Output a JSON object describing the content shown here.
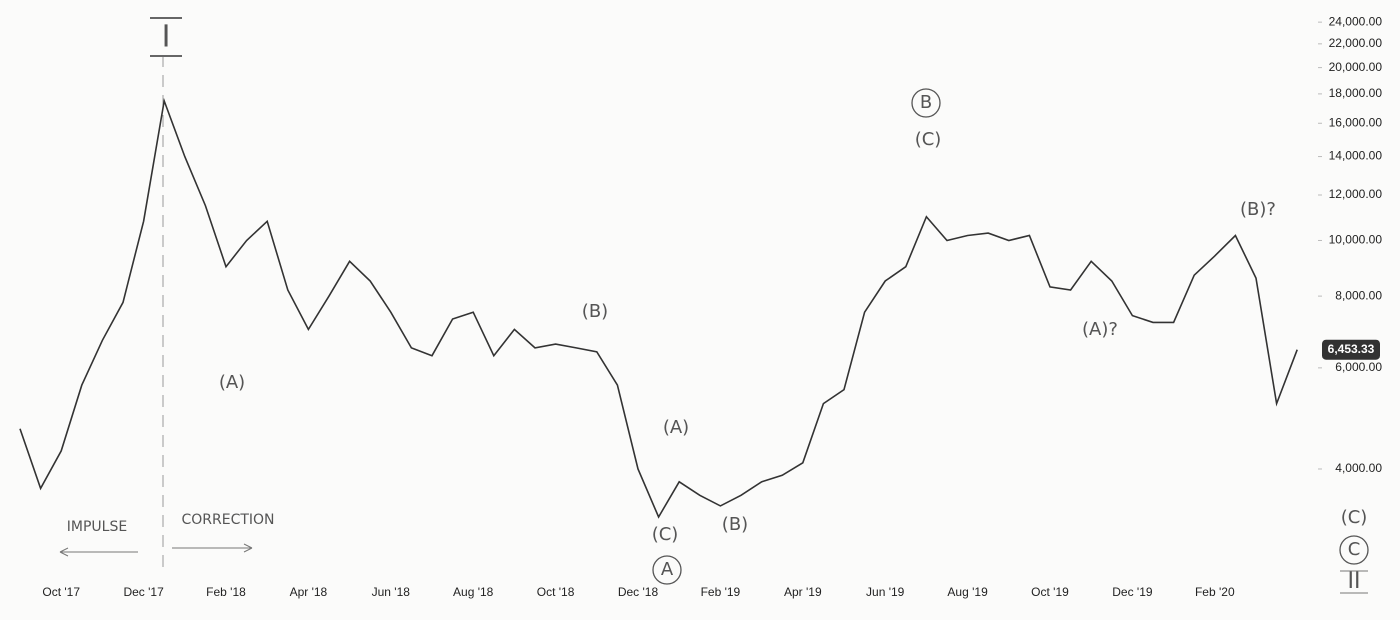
{
  "chart_data": {
    "type": "line",
    "log_scale": true,
    "color": "#333333",
    "categories": [
      null,
      null,
      "Oct '17",
      null,
      null,
      null,
      "Dec '17",
      null,
      null,
      null,
      "Feb '18",
      null,
      null,
      null,
      "Apr '18",
      null,
      null,
      null,
      "Jun '18",
      null,
      null,
      null,
      "Aug '18",
      null,
      null,
      null,
      "Oct '18",
      null,
      null,
      null,
      "Dec '18",
      null,
      null,
      null,
      "Feb '19",
      null,
      null,
      null,
      "Apr '19",
      null,
      null,
      null,
      "Jun '19",
      null,
      null,
      null,
      "Aug '19",
      null,
      null,
      null,
      "Oct '19",
      null,
      null,
      null,
      "Dec '19",
      null,
      null,
      null,
      "Feb '20",
      null,
      null,
      null,
      null
    ],
    "values": [
      4700,
      3700,
      4300,
      5600,
      6700,
      7800,
      10800,
      17500,
      14000,
      11500,
      9000,
      10000,
      10800,
      8200,
      7000,
      8000,
      9200,
      8500,
      7500,
      6500,
      6300,
      7300,
      7500,
      6300,
      7000,
      6500,
      6600,
      6500,
      6400,
      5600,
      4000,
      3300,
      3800,
      3600,
      3450,
      3600,
      3800,
      3900,
      4100,
      5200,
      5500,
      7500,
      8500,
      9000,
      11000,
      10000,
      10200,
      10300,
      10000,
      10200,
      8300,
      8200,
      9200,
      8500,
      7400,
      7200,
      7200,
      8700,
      9400,
      10200,
      8600,
      5200,
      6453.33
    ],
    "ylim": [
      2700,
      24500
    ],
    "yticks": [
      {
        "value": 4000,
        "label": "4,000.00"
      },
      {
        "value": 6000,
        "label": "6,000.00"
      },
      {
        "value": 8000,
        "label": "8,000.00"
      },
      {
        "value": 10000,
        "label": "10,000.00"
      },
      {
        "value": 12000,
        "label": "12,000.00"
      },
      {
        "value": 14000,
        "label": "14,000.00"
      },
      {
        "value": 16000,
        "label": "16,000.00"
      },
      {
        "value": 18000,
        "label": "18,000.00"
      },
      {
        "value": 20000,
        "label": "20,000.00"
      },
      {
        "value": 22000,
        "label": "22,000.00"
      },
      {
        "value": 24000,
        "label": "24,000.00"
      }
    ],
    "last_price": {
      "value": 6453.33,
      "label": "6,453.33"
    },
    "annotations": [
      "I",
      "(A)",
      "(B)",
      "(A)",
      "(C)",
      "A",
      "(B)",
      "B",
      "(C)",
      "(A)?",
      "(B)?",
      "(C)",
      "C",
      "II",
      "IMPULSE",
      "CORRECTION"
    ]
  }
}
